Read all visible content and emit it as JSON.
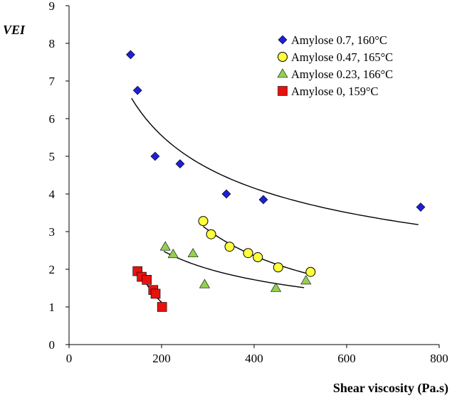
{
  "chart_data": {
    "type": "scatter",
    "title": "",
    "xlabel": "Shear viscosity (Pa.s)",
    "ylabel": "VEI",
    "xlim": [
      0,
      800
    ],
    "ylim": [
      0,
      9
    ],
    "x_ticks": [
      "0",
      "200",
      "400",
      "600",
      "800"
    ],
    "y_ticks": [
      "0",
      "1",
      "2",
      "3",
      "4",
      "5",
      "6",
      "7",
      "8",
      "9"
    ],
    "grid": false,
    "legend_position": "top-right",
    "series": [
      {
        "name": "Amylose 0.7, 160°C",
        "marker": "diamond",
        "color": "#1f1fd6",
        "points": [
          [
            133,
            7.7
          ],
          [
            148,
            6.75
          ],
          [
            186,
            5.0
          ],
          [
            240,
            4.8
          ],
          [
            340,
            4.0
          ],
          [
            420,
            3.85
          ],
          [
            760,
            3.65
          ]
        ],
        "trend": "power",
        "trend_x_range": [
          135,
          755
        ]
      },
      {
        "name": "Amylose 0.47, 165°C",
        "marker": "circle",
        "color": "#ffff3c",
        "points": [
          [
            290,
            3.28
          ],
          [
            307,
            2.93
          ],
          [
            347,
            2.6
          ],
          [
            387,
            2.43
          ],
          [
            408,
            2.32
          ],
          [
            452,
            2.05
          ],
          [
            522,
            1.93
          ]
        ],
        "trend": "power",
        "trend_x_range": [
          290,
          520
        ]
      },
      {
        "name": "Amylose 0.23, 166°C",
        "marker": "triangle",
        "color": "#92d050",
        "points": [
          [
            208,
            2.6
          ],
          [
            225,
            2.4
          ],
          [
            268,
            2.42
          ],
          [
            293,
            1.6
          ],
          [
            447,
            1.5
          ],
          [
            512,
            1.7
          ]
        ],
        "trend": "power",
        "trend_x_range": [
          205,
          508
        ]
      },
      {
        "name": "Amylose 0, 159°C",
        "marker": "square",
        "color": "#e8110f",
        "points": [
          [
            148,
            1.95
          ],
          [
            157,
            1.8
          ],
          [
            168,
            1.72
          ],
          [
            182,
            1.45
          ],
          [
            187,
            1.35
          ],
          [
            201,
            1.0
          ]
        ],
        "trend": "power",
        "trend_x_range": [
          150,
          200
        ]
      }
    ]
  }
}
